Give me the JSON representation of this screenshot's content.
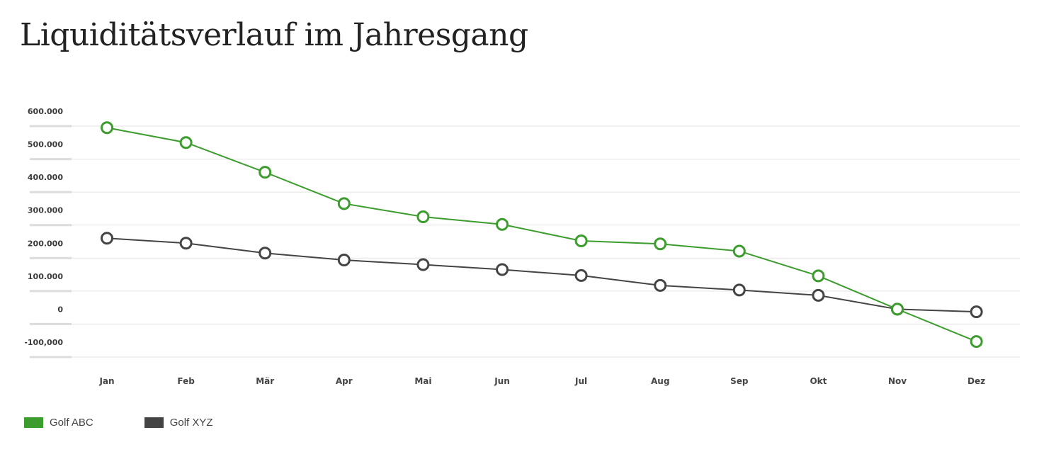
{
  "title": "Liquiditätsverlauf im Jahresgang",
  "chart_data": {
    "type": "line",
    "title": "Liquiditätsverlauf im Jahresgang",
    "xlabel": "",
    "ylabel": "",
    "categories": [
      "Jan",
      "Feb",
      "Mär",
      "Apr",
      "Mai",
      "Jun",
      "Jul",
      "Aug",
      "Sep",
      "Okt",
      "Nov",
      "Dez"
    ],
    "y_ticks": [
      {
        "value": 600000,
        "label": "600.000"
      },
      {
        "value": 500000,
        "label": "500.000"
      },
      {
        "value": 400000,
        "label": "400.000"
      },
      {
        "value": 300000,
        "label": "300.000"
      },
      {
        "value": 200000,
        "label": "200.000"
      },
      {
        "value": 100000,
        "label": "100.000"
      },
      {
        "value": 0,
        "label": "0"
      },
      {
        "value": -100000,
        "label": "-100,000"
      }
    ],
    "ylim": [
      -100000,
      600000
    ],
    "grid": true,
    "legend_position": "bottom-left",
    "series": [
      {
        "name": "Golf ABC",
        "color": "#3c9c2e",
        "values": [
          550000,
          505000,
          415000,
          320000,
          280000,
          257000,
          207000,
          198000,
          176000,
          101000,
          0,
          -98000
        ]
      },
      {
        "name": "Golf XYZ",
        "color": "#444444",
        "values": [
          215000,
          200000,
          170000,
          149000,
          135000,
          120000,
          102000,
          72000,
          58000,
          42000,
          0,
          -8000
        ]
      }
    ]
  }
}
